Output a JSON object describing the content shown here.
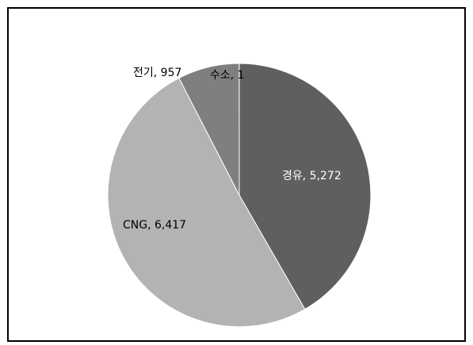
{
  "chart_data": {
    "type": "pie",
    "title": "",
    "slices": [
      {
        "label": "경유",
        "value": 5272,
        "display_value": "5,272",
        "color": "#5f5f5f",
        "label_color": "#ffffff"
      },
      {
        "label": "CNG",
        "value": 6417,
        "display_value": "6,417",
        "color": "#b3b3b3",
        "label_color": "#000000"
      },
      {
        "label": "전기",
        "value": 957,
        "display_value": "957",
        "color": "#7f7f7f",
        "label_color": "#000000"
      },
      {
        "label": "수소",
        "value": 1,
        "display_value": "1",
        "color": "#d9d9d9",
        "label_color": "#000000"
      }
    ],
    "start_angle_deg": 0,
    "direction": "clockwise",
    "legend": "none"
  }
}
